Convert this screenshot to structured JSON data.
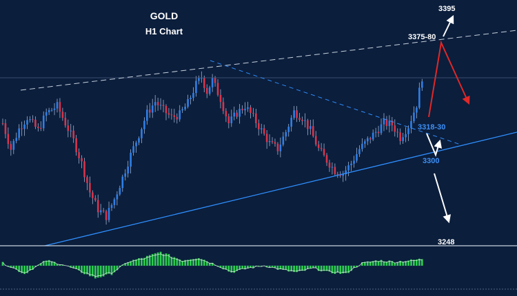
{
  "chart_data": {
    "type": "candlestick",
    "title": "GOLD",
    "subtitle": "H1 Chart",
    "y_range": [
      3235,
      3400
    ],
    "grid": false,
    "colors": {
      "background": "#0b1e3c",
      "bull": "#2f7fe8",
      "bear": "#d9344a",
      "wick": "#9fb3d1",
      "trendline": "#2f8fff",
      "resistance_line": "#c9d3e0",
      "up_arrow": "#ffffff",
      "down_arrow": "#e02828",
      "osc_positive": "#2ecc52"
    },
    "price_waypoints": [
      [
        0,
        3318
      ],
      [
        3,
        3300
      ],
      [
        6,
        3314
      ],
      [
        9,
        3322
      ],
      [
        13,
        3313
      ],
      [
        16,
        3325
      ],
      [
        20,
        3330
      ],
      [
        23,
        3318
      ],
      [
        26,
        3306
      ],
      [
        29,
        3290
      ],
      [
        32,
        3270
      ],
      [
        35,
        3258
      ],
      [
        38,
        3253
      ],
      [
        41,
        3265
      ],
      [
        44,
        3280
      ],
      [
        47,
        3296
      ],
      [
        50,
        3310
      ],
      [
        53,
        3325
      ],
      [
        56,
        3333
      ],
      [
        59,
        3327
      ],
      [
        62,
        3322
      ],
      [
        65,
        3324
      ],
      [
        68,
        3332
      ],
      [
        71,
        3345
      ],
      [
        73,
        3350
      ],
      [
        75,
        3340
      ],
      [
        77,
        3348
      ],
      [
        80,
        3335
      ],
      [
        83,
        3318
      ],
      [
        86,
        3325
      ],
      [
        89,
        3330
      ],
      [
        92,
        3322
      ],
      [
        95,
        3313
      ],
      [
        98,
        3304
      ],
      [
        101,
        3300
      ],
      [
        104,
        3312
      ],
      [
        107,
        3326
      ],
      [
        110,
        3322
      ],
      [
        113,
        3313
      ],
      [
        116,
        3300
      ],
      [
        119,
        3292
      ],
      [
        122,
        3285
      ],
      [
        125,
        3283
      ],
      [
        128,
        3290
      ],
      [
        131,
        3300
      ],
      [
        134,
        3306
      ],
      [
        137,
        3312
      ],
      [
        140,
        3318
      ],
      [
        143,
        3317
      ],
      [
        146,
        3308
      ],
      [
        149,
        3316
      ],
      [
        152,
        3331
      ],
      [
        154,
        3350
      ]
    ],
    "key_levels": {
      "target_high": "3395",
      "resistance": "3375-80",
      "support_zone": "3318-30",
      "support": "3300",
      "target_low": "3248"
    },
    "oscillator_waypoints": [
      [
        0,
        0.2
      ],
      [
        8,
        -0.6
      ],
      [
        16,
        0.4
      ],
      [
        22,
        0.1
      ],
      [
        28,
        -0.4
      ],
      [
        34,
        -0.9
      ],
      [
        40,
        -0.6
      ],
      [
        46,
        0.3
      ],
      [
        52,
        0.6
      ],
      [
        58,
        1.0
      ],
      [
        62,
        0.7
      ],
      [
        66,
        0.4
      ],
      [
        72,
        0.6
      ],
      [
        78,
        0.1
      ],
      [
        84,
        -0.5
      ],
      [
        90,
        -0.2
      ],
      [
        96,
        0.0
      ],
      [
        102,
        -0.3
      ],
      [
        108,
        -0.5
      ],
      [
        114,
        -0.2
      ],
      [
        120,
        -0.5
      ],
      [
        126,
        -0.6
      ],
      [
        132,
        0.2
      ],
      [
        138,
        0.4
      ],
      [
        144,
        0.3
      ],
      [
        150,
        0.4
      ],
      [
        154,
        0.5
      ]
    ],
    "oscillator_range": [
      -1.2,
      1.2
    ]
  }
}
